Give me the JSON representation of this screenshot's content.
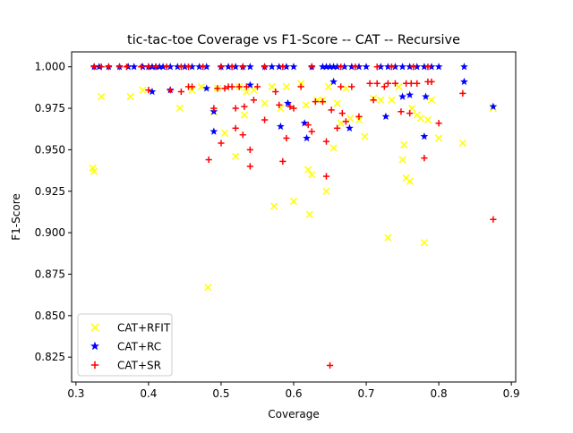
{
  "chart_data": {
    "type": "scatter",
    "title": "tic-tac-toe Coverage vs F1-Score -- CAT -- Recursive",
    "xlabel": "Coverage",
    "ylabel": "F1-Score",
    "xlim": [
      0.294,
      0.906
    ],
    "ylim": [
      0.81,
      1.009
    ],
    "x_ticks": [
      0.3,
      0.4,
      0.5,
      0.6,
      0.7,
      0.8,
      0.9
    ],
    "x_tick_labels": [
      "0.3",
      "0.4",
      "0.5",
      "0.6",
      "0.7",
      "0.8",
      "0.9"
    ],
    "y_ticks": [
      0.825,
      0.85,
      0.875,
      0.9,
      0.925,
      0.95,
      0.975,
      1.0
    ],
    "y_tick_labels": [
      "0.825",
      "0.850",
      "0.875",
      "0.900",
      "0.925",
      "0.950",
      "0.975",
      "1.000"
    ],
    "grid": false,
    "legend_position": "lower-left",
    "series": [
      {
        "name": "CAT+RFIT",
        "color": "#ffff00",
        "marker": "x",
        "points": [
          [
            0.323,
            0.939
          ],
          [
            0.325,
            0.937
          ],
          [
            0.335,
            0.982
          ],
          [
            0.375,
            0.982
          ],
          [
            0.392,
            0.986
          ],
          [
            0.443,
            0.975
          ],
          [
            0.46,
            0.986
          ],
          [
            0.473,
            0.988
          ],
          [
            0.482,
            0.867
          ],
          [
            0.49,
            0.973
          ],
          [
            0.495,
            0.987
          ],
          [
            0.505,
            0.96
          ],
          [
            0.52,
            0.946
          ],
          [
            0.525,
            0.988
          ],
          [
            0.532,
            0.971
          ],
          [
            0.535,
            0.985
          ],
          [
            0.545,
            0.986
          ],
          [
            0.56,
            0.978
          ],
          [
            0.57,
            0.988
          ],
          [
            0.573,
            0.916
          ],
          [
            0.582,
            0.975
          ],
          [
            0.59,
            0.988
          ],
          [
            0.6,
            0.919
          ],
          [
            0.61,
            0.99
          ],
          [
            0.617,
            0.977
          ],
          [
            0.62,
            0.938
          ],
          [
            0.622,
            0.911
          ],
          [
            0.625,
            0.935
          ],
          [
            0.633,
            0.98
          ],
          [
            0.64,
            0.98
          ],
          [
            0.645,
            0.925
          ],
          [
            0.648,
            0.988
          ],
          [
            0.655,
            0.951
          ],
          [
            0.66,
            0.978
          ],
          [
            0.665,
            0.966
          ],
          [
            0.672,
            0.987
          ],
          [
            0.678,
            0.969
          ],
          [
            0.69,
            0.968
          ],
          [
            0.698,
            0.958
          ],
          [
            0.71,
            0.981
          ],
          [
            0.72,
            0.98
          ],
          [
            0.73,
            0.897
          ],
          [
            0.735,
            0.98
          ],
          [
            0.745,
            0.988
          ],
          [
            0.75,
            0.944
          ],
          [
            0.752,
            0.953
          ],
          [
            0.755,
            0.933
          ],
          [
            0.76,
            0.931
          ],
          [
            0.763,
            0.975
          ],
          [
            0.77,
            0.971
          ],
          [
            0.775,
            0.969
          ],
          [
            0.78,
            0.894
          ],
          [
            0.785,
            0.968
          ],
          [
            0.79,
            0.98
          ],
          [
            0.8,
            0.957
          ],
          [
            0.833,
            0.954
          ],
          [
            0.875,
            0.975
          ]
        ]
      },
      {
        "name": "CAT+RC",
        "color": "#0000ff",
        "marker": "*",
        "points": [
          [
            0.325,
            1.0
          ],
          [
            0.332,
            1.0
          ],
          [
            0.345,
            1.0
          ],
          [
            0.36,
            1.0
          ],
          [
            0.372,
            1.0
          ],
          [
            0.38,
            1.0
          ],
          [
            0.392,
            1.0
          ],
          [
            0.4,
            1.0
          ],
          [
            0.405,
            1.0
          ],
          [
            0.41,
            1.0
          ],
          [
            0.415,
            1.0
          ],
          [
            0.42,
            1.0
          ],
          [
            0.43,
            1.0
          ],
          [
            0.44,
            1.0
          ],
          [
            0.45,
            1.0
          ],
          [
            0.46,
            1.0
          ],
          [
            0.47,
            1.0
          ],
          [
            0.48,
            1.0
          ],
          [
            0.5,
            1.0
          ],
          [
            0.51,
            1.0
          ],
          [
            0.52,
            1.0
          ],
          [
            0.53,
            1.0
          ],
          [
            0.54,
            1.0
          ],
          [
            0.56,
            1.0
          ],
          [
            0.57,
            1.0
          ],
          [
            0.58,
            1.0
          ],
          [
            0.59,
            1.0
          ],
          [
            0.6,
            1.0
          ],
          [
            0.625,
            1.0
          ],
          [
            0.64,
            1.0
          ],
          [
            0.645,
            1.0
          ],
          [
            0.65,
            1.0
          ],
          [
            0.655,
            1.0
          ],
          [
            0.66,
            1.0
          ],
          [
            0.67,
            1.0
          ],
          [
            0.68,
            1.0
          ],
          [
            0.69,
            1.0
          ],
          [
            0.7,
            1.0
          ],
          [
            0.72,
            1.0
          ],
          [
            0.73,
            1.0
          ],
          [
            0.74,
            1.0
          ],
          [
            0.75,
            1.0
          ],
          [
            0.76,
            1.0
          ],
          [
            0.77,
            1.0
          ],
          [
            0.78,
            1.0
          ],
          [
            0.79,
            1.0
          ],
          [
            0.8,
            1.0
          ],
          [
            0.835,
            1.0
          ],
          [
            0.405,
            0.985
          ],
          [
            0.43,
            0.986
          ],
          [
            0.48,
            0.987
          ],
          [
            0.49,
            0.961
          ],
          [
            0.49,
            0.973
          ],
          [
            0.54,
            0.989
          ],
          [
            0.582,
            0.964
          ],
          [
            0.592,
            0.978
          ],
          [
            0.615,
            0.966
          ],
          [
            0.618,
            0.957
          ],
          [
            0.655,
            0.991
          ],
          [
            0.677,
            0.963
          ],
          [
            0.727,
            0.97
          ],
          [
            0.75,
            0.982
          ],
          [
            0.76,
            0.983
          ],
          [
            0.78,
            0.958
          ],
          [
            0.782,
            0.982
          ],
          [
            0.835,
            0.991
          ],
          [
            0.875,
            0.976
          ]
        ]
      },
      {
        "name": "CAT+SR",
        "color": "#ff0000",
        "marker": "+",
        "points": [
          [
            0.325,
            1.0
          ],
          [
            0.335,
            1.0
          ],
          [
            0.345,
            1.0
          ],
          [
            0.36,
            1.0
          ],
          [
            0.37,
            1.0
          ],
          [
            0.39,
            1.0
          ],
          [
            0.4,
            1.0
          ],
          [
            0.41,
            1.0
          ],
          [
            0.425,
            1.0
          ],
          [
            0.445,
            1.0
          ],
          [
            0.455,
            1.0
          ],
          [
            0.475,
            1.0
          ],
          [
            0.5,
            1.0
          ],
          [
            0.515,
            1.0
          ],
          [
            0.53,
            1.0
          ],
          [
            0.56,
            1.0
          ],
          [
            0.585,
            1.0
          ],
          [
            0.625,
            1.0
          ],
          [
            0.665,
            1.0
          ],
          [
            0.685,
            1.0
          ],
          [
            0.715,
            1.0
          ],
          [
            0.735,
            1.0
          ],
          [
            0.765,
            1.0
          ],
          [
            0.785,
            1.0
          ],
          [
            0.4,
            0.986
          ],
          [
            0.43,
            0.986
          ],
          [
            0.445,
            0.985
          ],
          [
            0.455,
            0.988
          ],
          [
            0.46,
            0.988
          ],
          [
            0.483,
            0.944
          ],
          [
            0.49,
            0.975
          ],
          [
            0.495,
            0.987
          ],
          [
            0.5,
            0.954
          ],
          [
            0.505,
            0.987
          ],
          [
            0.51,
            0.988
          ],
          [
            0.515,
            0.988
          ],
          [
            0.52,
            0.975
          ],
          [
            0.52,
            0.963
          ],
          [
            0.525,
            0.988
          ],
          [
            0.53,
            0.959
          ],
          [
            0.532,
            0.976
          ],
          [
            0.535,
            0.988
          ],
          [
            0.54,
            0.95
          ],
          [
            0.54,
            0.94
          ],
          [
            0.545,
            0.98
          ],
          [
            0.55,
            0.988
          ],
          [
            0.56,
            0.968
          ],
          [
            0.575,
            0.985
          ],
          [
            0.58,
            0.977
          ],
          [
            0.585,
            0.943
          ],
          [
            0.59,
            0.957
          ],
          [
            0.595,
            0.976
          ],
          [
            0.6,
            0.975
          ],
          [
            0.61,
            0.988
          ],
          [
            0.62,
            0.965
          ],
          [
            0.625,
            0.961
          ],
          [
            0.63,
            0.979
          ],
          [
            0.64,
            0.979
          ],
          [
            0.645,
            0.955
          ],
          [
            0.645,
            0.934
          ],
          [
            0.65,
            0.82
          ],
          [
            0.652,
            0.974
          ],
          [
            0.66,
            0.963
          ],
          [
            0.665,
            0.988
          ],
          [
            0.667,
            0.972
          ],
          [
            0.672,
            0.967
          ],
          [
            0.68,
            0.988
          ],
          [
            0.69,
            0.97
          ],
          [
            0.705,
            0.99
          ],
          [
            0.71,
            0.98
          ],
          [
            0.715,
            0.99
          ],
          [
            0.725,
            0.988
          ],
          [
            0.73,
            0.99
          ],
          [
            0.74,
            0.99
          ],
          [
            0.748,
            0.973
          ],
          [
            0.755,
            0.99
          ],
          [
            0.76,
            0.972
          ],
          [
            0.762,
            0.99
          ],
          [
            0.77,
            0.99
          ],
          [
            0.78,
            0.945
          ],
          [
            0.785,
            0.991
          ],
          [
            0.79,
            0.991
          ],
          [
            0.8,
            0.966
          ],
          [
            0.833,
            0.984
          ],
          [
            0.875,
            0.908
          ]
        ]
      }
    ]
  }
}
